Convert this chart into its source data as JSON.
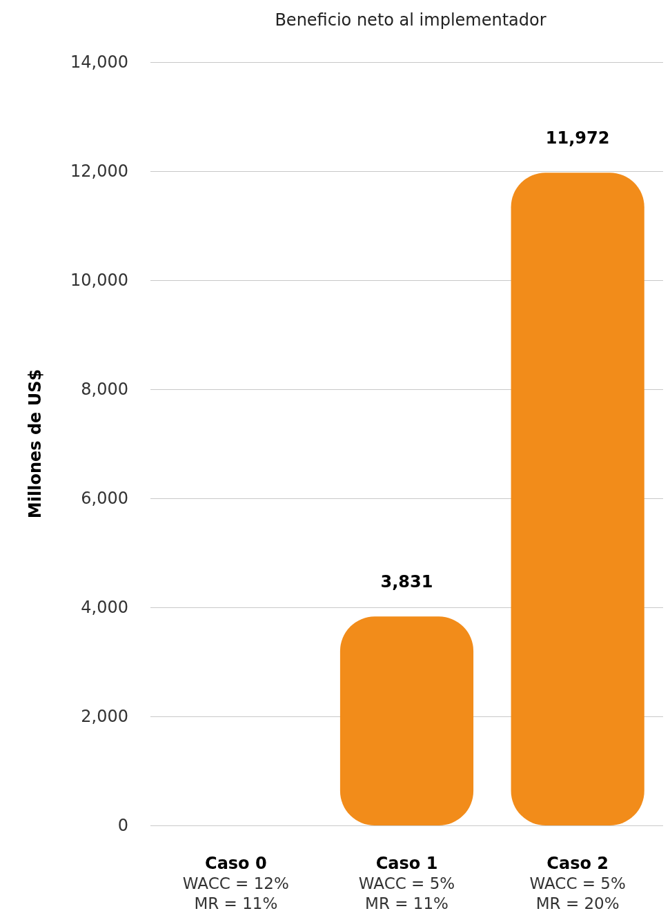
{
  "chart_data": {
    "type": "bar",
    "title": "Beneficio neto al implementador",
    "ylabel": "Millones de US$",
    "categories": [
      "Caso 0\nWACC = 12%\nMR = 11%",
      "Caso 1\nWACC = 5%\nMR = 11%",
      "Caso 2\nWACC = 5%\nMR = 20%"
    ],
    "series": [
      {
        "color": "#f28c1a",
        "values": [
          0,
          3831,
          11972
        ],
        "value_labels": [
          null,
          "3,831",
          "11,972"
        ]
      }
    ],
    "ylim": [
      0,
      14000
    ],
    "yticks": [
      {
        "value": 0,
        "label": "0"
      },
      {
        "value": 2000,
        "label": "2,000"
      },
      {
        "value": 4000,
        "label": "4,000"
      },
      {
        "value": 6000,
        "label": "6,000"
      },
      {
        "value": 8000,
        "label": "8,000"
      },
      {
        "value": 10000,
        "label": "10,000"
      },
      {
        "value": 12000,
        "label": "12,000"
      },
      {
        "value": 14000,
        "label": "14,000"
      }
    ],
    "grid": "y"
  }
}
